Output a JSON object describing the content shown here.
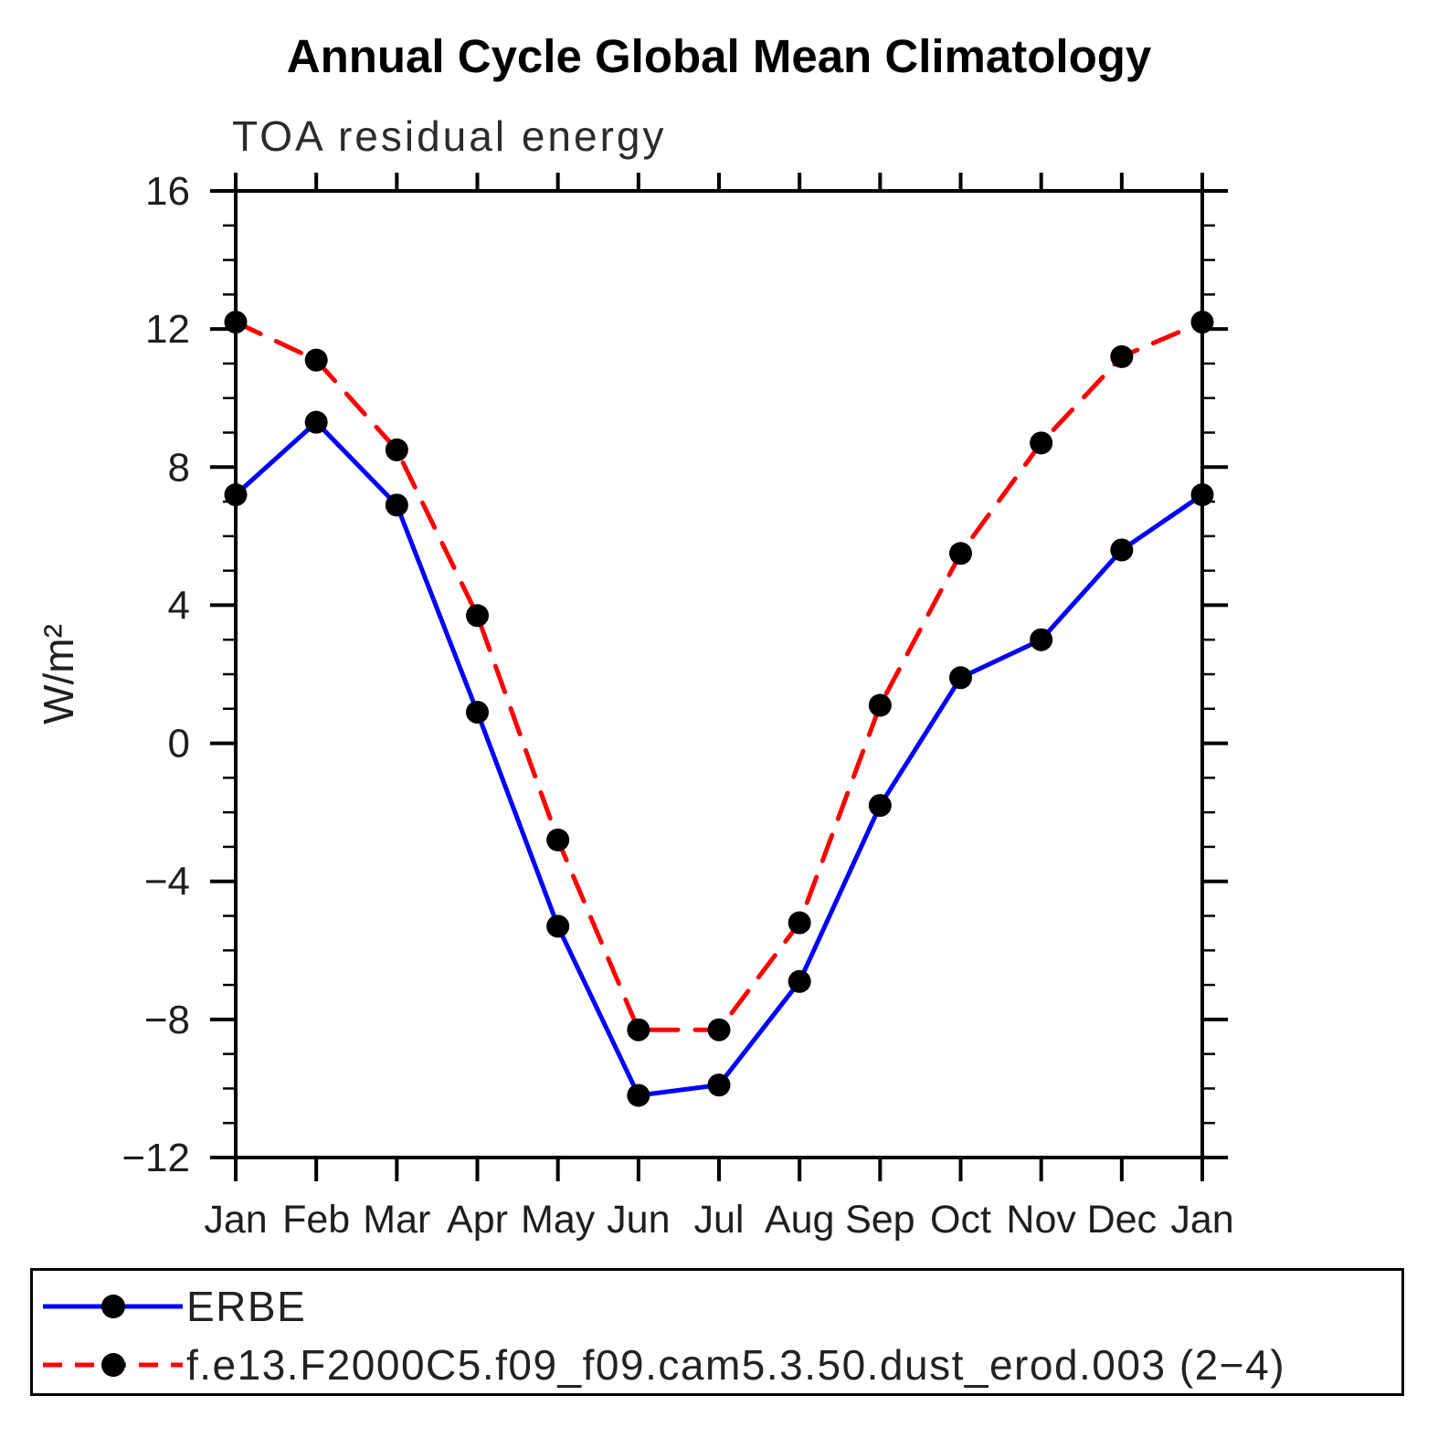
{
  "figure": {
    "background": "#ffffff",
    "axis_color": "#000000",
    "text_color": "#1e1e1e"
  },
  "chart_data": {
    "type": "line",
    "title": "Annual Cycle Global Mean Climatology",
    "subtitle": "TOA residual energy",
    "ylabel": "W/m²",
    "xlabel": "",
    "categories": [
      "Jan",
      "Feb",
      "Mar",
      "Apr",
      "May",
      "Jun",
      "Jul",
      "Aug",
      "Sep",
      "Oct",
      "Nov",
      "Dec",
      "Jan"
    ],
    "ylim": [
      -12,
      16
    ],
    "ytick_major_step": 4,
    "ytick_minor_step": 1,
    "grid": false,
    "legend_position": "bottom-box",
    "series": [
      {
        "name": "ERBE",
        "color": "#0000ff",
        "line_style": "solid",
        "marker": "circle",
        "marker_color": "#000000",
        "values": [
          7.2,
          9.3,
          6.9,
          0.9,
          -5.3,
          -10.2,
          -9.9,
          -6.9,
          -1.8,
          1.9,
          3.0,
          5.6,
          7.2
        ]
      },
      {
        "name": "f.e13.F2000C5.f09_f09.cam5.3.50.dust_erod.003 (2−4)",
        "color": "#ff0000",
        "line_style": "dashed",
        "marker": "circle",
        "marker_color": "#000000",
        "values": [
          12.2,
          11.1,
          8.5,
          3.7,
          -2.8,
          -8.3,
          -8.3,
          -5.2,
          1.1,
          5.5,
          8.7,
          11.2,
          12.2
        ]
      }
    ]
  }
}
